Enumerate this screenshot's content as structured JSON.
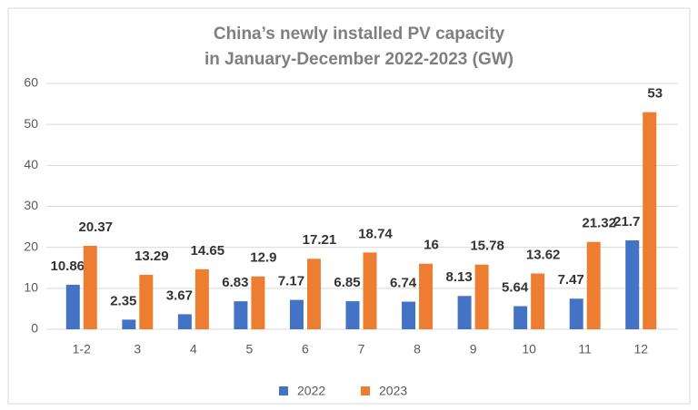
{
  "chart_data": {
    "type": "bar",
    "title": [
      "China’s newly installed PV capacity",
      "in January-December 2022-2023 (GW)"
    ],
    "categories": [
      "1-2",
      "3",
      "4",
      "5",
      "6",
      "7",
      "8",
      "9",
      "10",
      "11",
      "12"
    ],
    "series": [
      {
        "name": "2022",
        "color": "#4472c4",
        "values": [
          10.86,
          2.35,
          3.67,
          6.83,
          7.17,
          6.85,
          6.74,
          8.13,
          5.64,
          7.47,
          21.7
        ]
      },
      {
        "name": "2023",
        "color": "#ed7d31",
        "values": [
          20.37,
          13.29,
          14.65,
          12.9,
          17.21,
          18.74,
          16,
          15.78,
          13.62,
          21.32,
          53
        ]
      }
    ],
    "ylim": [
      0,
      60
    ],
    "yticks": [
      0,
      10,
      20,
      30,
      40,
      50,
      60
    ],
    "grid": true,
    "legend": "bottom"
  }
}
